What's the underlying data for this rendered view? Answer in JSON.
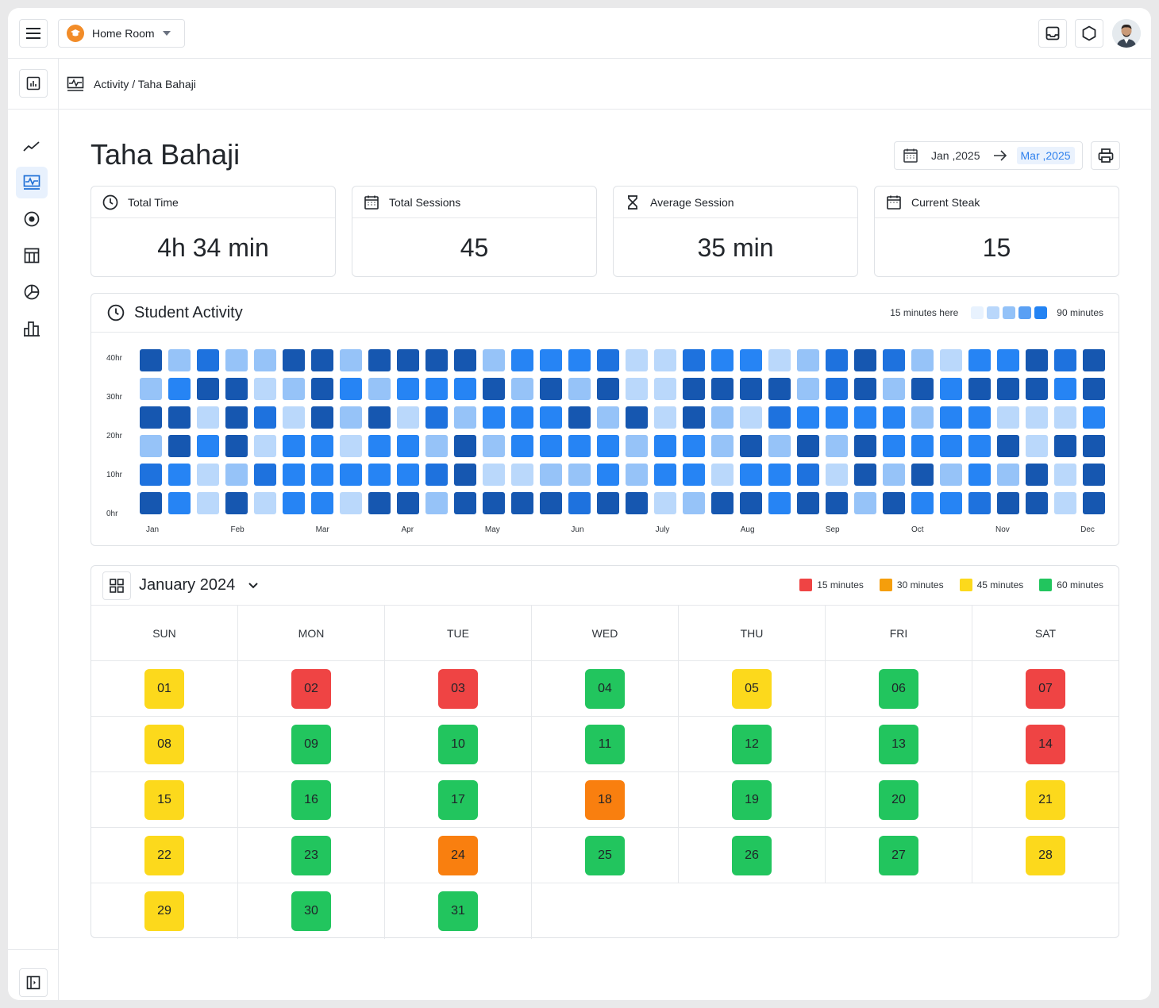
{
  "header": {
    "room_name": "Home Room"
  },
  "breadcrumb": {
    "text": "Activity / Taha Bahaji"
  },
  "page": {
    "title": "Taha Bahaji"
  },
  "date_range": {
    "from": "Jan ,2025",
    "to": "Mar ,2025"
  },
  "stats": [
    {
      "label": "Total Time",
      "value": "4h 34 min",
      "icon": "clock-icon"
    },
    {
      "label": "Total Sessions",
      "value": "45",
      "icon": "calendar-icon"
    },
    {
      "label": "Average Session",
      "value": "35 min",
      "icon": "hourglass-icon"
    },
    {
      "label": "Current Steak",
      "value": "15",
      "icon": "calendar-icon"
    }
  ],
  "activity": {
    "title": "Student Activity",
    "legend_low": "15 minutes here",
    "legend_high": "90 minutes",
    "legend_colors": [
      "#e8f2fe",
      "#b9d7fb",
      "#93c2f8",
      "#5aa0f4",
      "#2383f3"
    ]
  },
  "chart_data": {
    "type": "heatmap",
    "y_labels": [
      "40hr",
      "30hr",
      "20hr",
      "10hr",
      "0hr"
    ],
    "x_labels": [
      "Jan",
      "Feb",
      "Mar",
      "Apr",
      "May",
      "Jun",
      "July",
      "Aug",
      "Sep",
      "Oct",
      "Nov",
      "Dec"
    ],
    "levels": [
      "#bad8fb",
      "#96c3f8",
      "#2684f4",
      "#1e72de",
      "#1657b0"
    ],
    "rows": [
      [
        4,
        1,
        3,
        1,
        1,
        4,
        4,
        1,
        4,
        4,
        4,
        4,
        1,
        2,
        2,
        2,
        3,
        0,
        0,
        3,
        2,
        2,
        0,
        1,
        3,
        4,
        3,
        1,
        0,
        2,
        2,
        4,
        3,
        4
      ],
      [
        1,
        2,
        4,
        4,
        0,
        1,
        4,
        2,
        1,
        2,
        2,
        2,
        4,
        1,
        4,
        1,
        4,
        0,
        0,
        4,
        4,
        4,
        4,
        1,
        3,
        4,
        1,
        4,
        2,
        4,
        4,
        4,
        2,
        4
      ],
      [
        4,
        4,
        0,
        4,
        3,
        0,
        4,
        1,
        4,
        0,
        3,
        1,
        2,
        2,
        2,
        4,
        1,
        4,
        0,
        4,
        1,
        0,
        3,
        2,
        2,
        2,
        2,
        1,
        2,
        2,
        0,
        0,
        0,
        2
      ],
      [
        1,
        4,
        2,
        4,
        0,
        2,
        2,
        0,
        2,
        2,
        1,
        4,
        1,
        2,
        2,
        2,
        2,
        1,
        2,
        2,
        1,
        4,
        1,
        4,
        1,
        4,
        2,
        2,
        2,
        2,
        4,
        0,
        4,
        4
      ],
      [
        3,
        2,
        0,
        1,
        3,
        2,
        2,
        2,
        2,
        2,
        3,
        4,
        0,
        0,
        1,
        1,
        2,
        1,
        2,
        2,
        0,
        2,
        2,
        3,
        0,
        4,
        1,
        4,
        1,
        2,
        1,
        4,
        0,
        4
      ],
      [
        4,
        2,
        0,
        4,
        0,
        2,
        2,
        0,
        4,
        4,
        1,
        4,
        4,
        4,
        4,
        3,
        4,
        4,
        0,
        1,
        4,
        4,
        2,
        4,
        4,
        1,
        4,
        2,
        2,
        3,
        4,
        4,
        0,
        4
      ]
    ]
  },
  "calendar": {
    "title": "January 2024",
    "legend": [
      {
        "label": "15 minutes",
        "color": "#ef4444"
      },
      {
        "label": "30 minutes",
        "color": "#f59e0b"
      },
      {
        "label": "45 minutes",
        "color": "#fcd91c"
      },
      {
        "label": "60 minutes",
        "color": "#22c55e"
      }
    ],
    "weekdays": [
      "SUN",
      "MON",
      "TUE",
      "WED",
      "THU",
      "FRI",
      "SAT"
    ],
    "days": [
      {
        "label": "01",
        "color": "#fcd91c"
      },
      {
        "label": "02",
        "color": "#ef4444"
      },
      {
        "label": "03",
        "color": "#ef4444"
      },
      {
        "label": "04",
        "color": "#22c55e"
      },
      {
        "label": "05",
        "color": "#fcd91c"
      },
      {
        "label": "06",
        "color": "#22c55e"
      },
      {
        "label": "07",
        "color": "#ef4444"
      },
      {
        "label": "08",
        "color": "#fcd91c"
      },
      {
        "label": "09",
        "color": "#22c55e"
      },
      {
        "label": "10",
        "color": "#22c55e"
      },
      {
        "label": "11",
        "color": "#22c55e"
      },
      {
        "label": "12",
        "color": "#22c55e"
      },
      {
        "label": "13",
        "color": "#22c55e"
      },
      {
        "label": "14",
        "color": "#ef4444"
      },
      {
        "label": "15",
        "color": "#fcd91c"
      },
      {
        "label": "16",
        "color": "#22c55e"
      },
      {
        "label": "17",
        "color": "#22c55e"
      },
      {
        "label": "18",
        "color": "#f97f0f"
      },
      {
        "label": "19",
        "color": "#22c55e"
      },
      {
        "label": "20",
        "color": "#22c55e"
      },
      {
        "label": "21",
        "color": "#fcd91c"
      },
      {
        "label": "22",
        "color": "#fcd91c"
      },
      {
        "label": "23",
        "color": "#22c55e"
      },
      {
        "label": "24",
        "color": "#f97f0f"
      },
      {
        "label": "25",
        "color": "#22c55e"
      },
      {
        "label": "26",
        "color": "#22c55e"
      },
      {
        "label": "27",
        "color": "#22c55e"
      },
      {
        "label": "28",
        "color": "#fcd91c"
      },
      {
        "label": "29",
        "color": "#fcd91c"
      },
      {
        "label": "30",
        "color": "#22c55e"
      },
      {
        "label": "31",
        "color": "#22c55e"
      }
    ]
  }
}
